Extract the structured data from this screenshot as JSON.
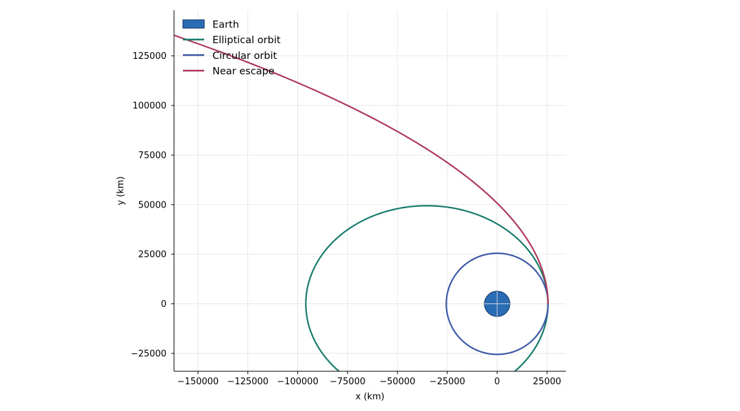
{
  "chart_data": {
    "type": "line",
    "xlabel": "x (km)",
    "ylabel": "y (km)",
    "xlim": [
      -162000,
      34500
    ],
    "ylim": [
      -34000,
      148000
    ],
    "grid": true,
    "legend_placement": "top-left",
    "x_ticks": [
      -150000,
      -125000,
      -100000,
      -75000,
      -50000,
      -25000,
      0,
      25000
    ],
    "x_tick_labels": [
      "−150000",
      "−125000",
      "−100000",
      "−75000",
      "−50000",
      "−25000",
      "0",
      "25000"
    ],
    "y_ticks": [
      -25000,
      0,
      25000,
      50000,
      75000,
      100000,
      125000
    ],
    "y_tick_labels": [
      "−25000",
      "0",
      "25000",
      "50000",
      "75000",
      "100000",
      "125000"
    ],
    "earth": {
      "name": "Earth",
      "center": [
        0,
        0
      ],
      "radius_km": 6371,
      "color": "#2a6db5",
      "edge_color": "#1a3f73"
    },
    "series": [
      {
        "name": "Elliptical orbit",
        "color": "#167a6c",
        "kind": "conic",
        "periapsis_km": 25500,
        "eccentricity": 0.58,
        "theta_range_deg": [
          -180,
          180
        ]
      },
      {
        "name": "Circular orbit",
        "color": "#3d5aa8",
        "kind": "conic",
        "periapsis_km": 25500,
        "eccentricity": 0.0,
        "theta_range_deg": [
          -180,
          180
        ]
      },
      {
        "name": "Near escape",
        "color": "#ad3a5b",
        "kind": "conic",
        "periapsis_km": 25500,
        "eccentricity": 0.99,
        "theta_range_deg": [
          0,
          155
        ]
      }
    ]
  }
}
